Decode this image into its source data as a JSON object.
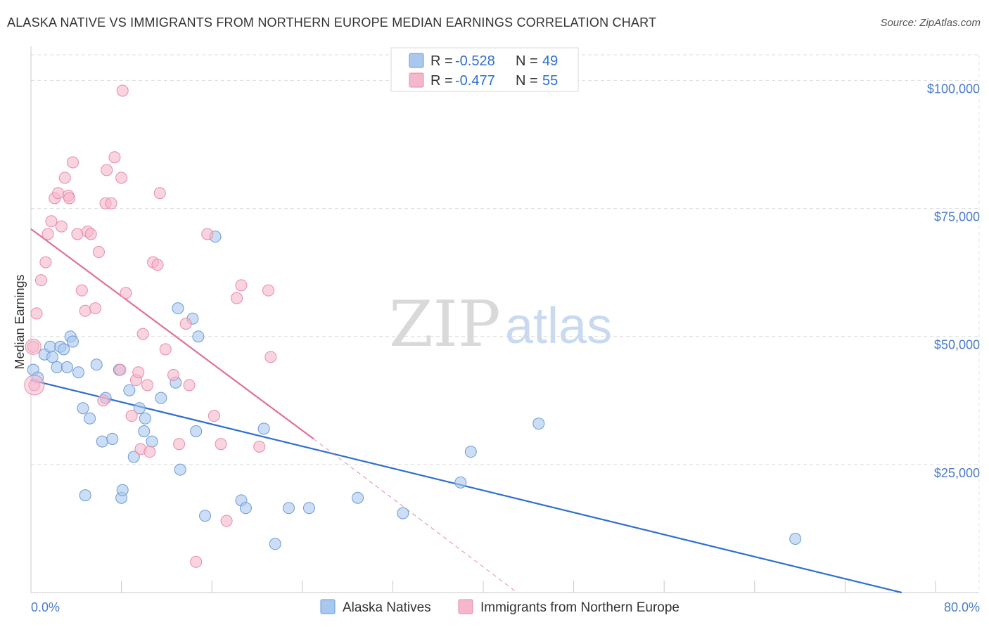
{
  "title": "ALASKA NATIVE VS IMMIGRANTS FROM NORTHERN EUROPE MEDIAN EARNINGS CORRELATION CHART",
  "source": "Source: ZipAtlas.com",
  "watermark": {
    "part1": "ZIP",
    "part2": "atlas"
  },
  "chart_data": {
    "type": "scatter",
    "title": "ALASKA NATIVE VS IMMIGRANTS FROM NORTHERN EUROPE MEDIAN EARNINGS CORRELATION CHART",
    "xlabel": "",
    "ylabel": "Median Earnings",
    "xlim": [
      0,
      80
    ],
    "ylim": [
      0,
      105000
    ],
    "x_tick_labels": {
      "left": "0.0%",
      "right": "80.0%"
    },
    "y_ticks": [
      {
        "value": 25000,
        "label": "$25,000"
      },
      {
        "value": 50000,
        "label": "$50,000"
      },
      {
        "value": 75000,
        "label": "$75,000"
      },
      {
        "value": 100000,
        "label": "$100,000"
      }
    ],
    "grid": true,
    "legend_placement": "top-center",
    "stats": [
      {
        "r_label": "R = ",
        "r": "-0.528",
        "n_label": "N = ",
        "n": "49",
        "color": "#a9c8f0"
      },
      {
        "r_label": "R = ",
        "r": "-0.477",
        "n_label": "N = ",
        "n": "55",
        "color": "#f5b8cb"
      }
    ],
    "series": [
      {
        "name": "Alaska Natives",
        "color": "#a9c8f0",
        "edge": "#6d9ad6",
        "trend": {
          "x0": 0,
          "y0": 41500,
          "x1": 77,
          "y1": 0,
          "color": "#2f6fce"
        },
        "points": [
          [
            0.2,
            43500
          ],
          [
            0.6,
            42000
          ],
          [
            1.2,
            46500
          ],
          [
            1.7,
            48000
          ],
          [
            1.9,
            46000
          ],
          [
            2.3,
            44000
          ],
          [
            2.6,
            48000
          ],
          [
            2.9,
            47500
          ],
          [
            3.2,
            44000
          ],
          [
            3.5,
            50000
          ],
          [
            3.7,
            49000
          ],
          [
            4.2,
            43000
          ],
          [
            4.6,
            36000
          ],
          [
            5.2,
            34000
          ],
          [
            5.8,
            44500
          ],
          [
            6.3,
            29500
          ],
          [
            6.6,
            38000
          ],
          [
            7.2,
            30000
          ],
          [
            7.8,
            43500
          ],
          [
            8.0,
            18500
          ],
          [
            8.1,
            20000
          ],
          [
            8.7,
            39500
          ],
          [
            9.1,
            26500
          ],
          [
            9.6,
            36000
          ],
          [
            10.0,
            31500
          ],
          [
            10.1,
            34000
          ],
          [
            10.7,
            29500
          ],
          [
            12.8,
            41000
          ],
          [
            13.0,
            55500
          ],
          [
            13.2,
            24000
          ],
          [
            14.3,
            53500
          ],
          [
            14.6,
            31500
          ],
          [
            14.8,
            50000
          ],
          [
            15.4,
            15000
          ],
          [
            16.3,
            69500
          ],
          [
            18.6,
            18000
          ],
          [
            19.0,
            16500
          ],
          [
            20.6,
            32000
          ],
          [
            21.6,
            9500
          ],
          [
            22.8,
            16500
          ],
          [
            24.6,
            16500
          ],
          [
            28.9,
            18500
          ],
          [
            32.9,
            15500
          ],
          [
            38.0,
            21500
          ],
          [
            38.9,
            27500
          ],
          [
            44.9,
            33000
          ],
          [
            67.6,
            10500
          ],
          [
            4.8,
            19000
          ],
          [
            11.5,
            38000
          ]
        ]
      },
      {
        "name": "Immigrants from Northern Europe",
        "color": "#f5b8cb",
        "edge": "#e88aa6",
        "trend": {
          "x0": 0,
          "y0": 71000,
          "x1": 25,
          "y1": 30000,
          "dash_x1": 43,
          "dash_y1": 0,
          "color": "#e0709a"
        },
        "points": [
          [
            0.2,
            48000
          ],
          [
            0.3,
            40500
          ],
          [
            0.5,
            54500
          ],
          [
            0.9,
            61000
          ],
          [
            1.3,
            64500
          ],
          [
            1.5,
            70000
          ],
          [
            1.8,
            72500
          ],
          [
            2.1,
            77000
          ],
          [
            2.4,
            78000
          ],
          [
            2.7,
            71500
          ],
          [
            3.0,
            81000
          ],
          [
            3.3,
            77500
          ],
          [
            3.4,
            77000
          ],
          [
            3.7,
            84000
          ],
          [
            4.1,
            70000
          ],
          [
            4.5,
            59000
          ],
          [
            4.8,
            55000
          ],
          [
            5.0,
            70500
          ],
          [
            5.3,
            70000
          ],
          [
            5.7,
            55500
          ],
          [
            6.0,
            66500
          ],
          [
            6.4,
            37500
          ],
          [
            6.6,
            76000
          ],
          [
            6.7,
            82500
          ],
          [
            7.1,
            76000
          ],
          [
            7.4,
            85000
          ],
          [
            7.9,
            43500
          ],
          [
            8.0,
            81000
          ],
          [
            8.1,
            98000
          ],
          [
            8.4,
            58500
          ],
          [
            8.9,
            34500
          ],
          [
            9.3,
            41500
          ],
          [
            9.5,
            43000
          ],
          [
            9.7,
            28000
          ],
          [
            9.9,
            50500
          ],
          [
            10.3,
            40500
          ],
          [
            10.5,
            27500
          ],
          [
            10.8,
            64500
          ],
          [
            11.2,
            64000
          ],
          [
            11.4,
            78000
          ],
          [
            11.9,
            47500
          ],
          [
            12.6,
            42500
          ],
          [
            13.1,
            29000
          ],
          [
            13.7,
            52500
          ],
          [
            14.0,
            40500
          ],
          [
            14.6,
            6000
          ],
          [
            15.6,
            70000
          ],
          [
            16.2,
            34500
          ],
          [
            16.8,
            29000
          ],
          [
            17.3,
            14000
          ],
          [
            18.2,
            57500
          ],
          [
            18.6,
            60000
          ],
          [
            20.2,
            28500
          ],
          [
            21.0,
            59000
          ],
          [
            21.2,
            46000
          ]
        ]
      }
    ]
  },
  "legend": {
    "items": [
      {
        "label": "Alaska Natives",
        "color": "#a9c8f0",
        "edge": "#6d9ad6"
      },
      {
        "label": "Immigrants from Northern Europe",
        "color": "#f5b8cb",
        "edge": "#e88aa6"
      }
    ]
  }
}
